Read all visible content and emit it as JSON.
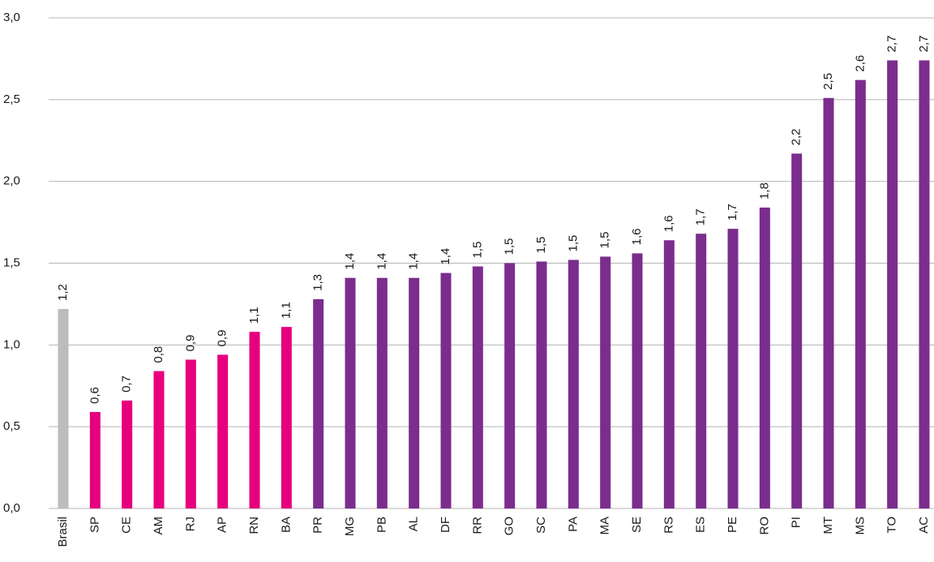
{
  "chart_data": {
    "type": "bar",
    "categories": [
      "Brasil",
      "SP",
      "CE",
      "AM",
      "RJ",
      "AP",
      "RN",
      "BA",
      "PR",
      "MG",
      "PB",
      "AL",
      "DF",
      "RR",
      "GO",
      "SC",
      "PA",
      "MA",
      "SE",
      "RS",
      "ES",
      "PE",
      "RO",
      "PI",
      "MT",
      "MS",
      "TO",
      "AC"
    ],
    "values": [
      1.22,
      0.59,
      0.66,
      0.84,
      0.91,
      0.94,
      1.08,
      1.11,
      1.28,
      1.41,
      1.41,
      1.41,
      1.44,
      1.48,
      1.5,
      1.51,
      1.52,
      1.54,
      1.56,
      1.64,
      1.68,
      1.71,
      1.84,
      2.17,
      2.51,
      2.62,
      2.74,
      2.74
    ],
    "value_labels": [
      "1,2",
      "0,6",
      "0,7",
      "0,8",
      "0,9",
      "0,9",
      "1,1",
      "1,1",
      "1,3",
      "1,4",
      "1,4",
      "1,4",
      "1,4",
      "1,5",
      "1,5",
      "1,5",
      "1,5",
      "1,5",
      "1,6",
      "1,6",
      "1,7",
      "1,7",
      "1,8",
      "2,2",
      "2,5",
      "2,6",
      "2,7",
      "2,7"
    ],
    "colors": [
      "#bcbcc0",
      "#e6007e",
      "#e6007e",
      "#e6007e",
      "#e6007e",
      "#e6007e",
      "#e6007e",
      "#e6007e",
      "#7b2d8e",
      "#7b2d8e",
      "#7b2d8e",
      "#7b2d8e",
      "#7b2d8e",
      "#7b2d8e",
      "#7b2d8e",
      "#7b2d8e",
      "#7b2d8e",
      "#7b2d8e",
      "#7b2d8e",
      "#7b2d8e",
      "#7b2d8e",
      "#7b2d8e",
      "#7b2d8e",
      "#7b2d8e",
      "#7b2d8e",
      "#7b2d8e",
      "#7b2d8e",
      "#7b2d8e"
    ],
    "ylim": [
      0,
      3
    ],
    "yticks": [
      {
        "value": 0,
        "label": "0,0"
      },
      {
        "value": 0.5,
        "label": "0,5"
      },
      {
        "value": 1,
        "label": "1,0"
      },
      {
        "value": 1.5,
        "label": "1,5"
      },
      {
        "value": 2,
        "label": "2,0"
      },
      {
        "value": 2.5,
        "label": "2,5"
      },
      {
        "value": 3,
        "label": "3,0"
      }
    ],
    "grid": true
  }
}
